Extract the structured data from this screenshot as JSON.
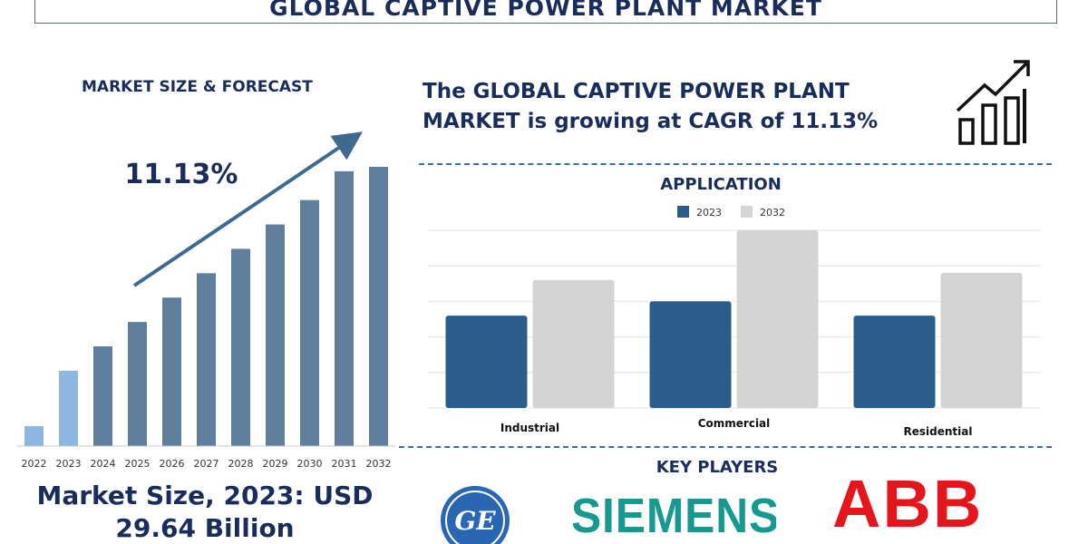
{
  "title": "GLOBAL CAPTIVE POWER PLANT MARKET",
  "left_panel": {
    "heading": "MARKET SIZE & FORECAST",
    "cagr_label": "11.13%",
    "market_size_line1": "Market Size, 2023: USD",
    "market_size_line2": "29.64 Billion"
  },
  "right_panel": {
    "headline_line1": "The GLOBAL CAPTIVE POWER PLANT",
    "headline_line2": "MARKET is growing at CAGR of 11.13%",
    "chart_icon": "growth-bar-chart-icon",
    "application_heading": "APPLICATION",
    "key_players_heading": "KEY PLAYERS",
    "players": [
      {
        "name": "GE",
        "icon": "ge-logo"
      },
      {
        "name": "SIEMENS",
        "icon": "siemens-logo"
      },
      {
        "name": "ABB",
        "icon": "abb-logo"
      }
    ]
  },
  "colors": {
    "title_text": "#1a2d5a",
    "bar_dark": "#5f7f9c",
    "bar_light": "#8eb7e0",
    "bar_2023": "#2b5c8a",
    "bar_2032": "#d4d4d4",
    "arrow": "#40698f",
    "siemens": "#17998f",
    "abb": "#e4161c",
    "ge": "#2a66b2"
  },
  "chart_data": [
    {
      "type": "bar",
      "categories": [
        "2022",
        "2023",
        "2024",
        "2025",
        "2026",
        "2027",
        "2028",
        "2029",
        "2030",
        "2031",
        "2032"
      ],
      "values": [
        9,
        34,
        45,
        56,
        67,
        78,
        89,
        100,
        111,
        124,
        126
      ],
      "ylim": [
        0,
        135
      ],
      "title": "",
      "xlabel": "",
      "ylabel": "",
      "highlight_index": [
        0,
        1
      ],
      "annotation": "11.13%",
      "grid": false
    },
    {
      "type": "bar",
      "title": "APPLICATION",
      "categories": [
        "Industrial",
        "Commercial",
        "Residential"
      ],
      "series": [
        {
          "name": "2023",
          "values": [
            52,
            60,
            52
          ]
        },
        {
          "name": "2032",
          "values": [
            72,
            100,
            76
          ]
        }
      ],
      "ylim": [
        0,
        100
      ],
      "grid": true,
      "legend": "top-center"
    }
  ]
}
